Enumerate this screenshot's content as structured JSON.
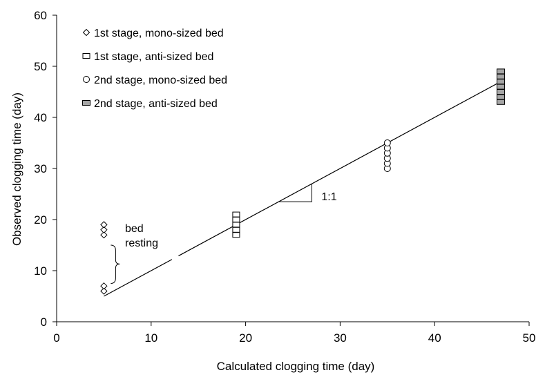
{
  "chart_data": {
    "type": "scatter",
    "title": "",
    "xlabel": "Calculated clogging time  (day)",
    "ylabel": "Observed clogging time  (day)",
    "xlim": [
      0,
      50
    ],
    "ylim": [
      0,
      60
    ],
    "xticks": [
      "0",
      "10",
      "20",
      "30",
      "40",
      "50"
    ],
    "yticks": [
      "0",
      "10",
      "20",
      "30",
      "40",
      "50",
      "60"
    ],
    "grid": false,
    "legend_position": "top-left",
    "series": [
      {
        "name": "1st stage, mono-sized bed",
        "marker": "diamond-open",
        "points": [
          [
            5,
            6
          ],
          [
            5,
            7
          ],
          [
            5,
            17
          ],
          [
            5,
            18
          ],
          [
            5,
            19
          ]
        ]
      },
      {
        "name": "1st stage, anti-sized bed",
        "marker": "square-open",
        "points": [
          [
            19,
            17
          ],
          [
            19,
            18
          ],
          [
            19,
            19
          ],
          [
            19,
            20
          ],
          [
            19,
            21
          ]
        ]
      },
      {
        "name": "2nd stage, mono-sized bed",
        "marker": "circle-open",
        "points": [
          [
            35,
            30
          ],
          [
            35,
            31
          ],
          [
            35,
            32
          ],
          [
            35,
            33
          ],
          [
            35,
            34
          ],
          [
            35,
            35
          ]
        ]
      },
      {
        "name": "2nd stage, anti-sized bed",
        "marker": "square-filled-gray",
        "points": [
          [
            47,
            43
          ],
          [
            47,
            44
          ],
          [
            47,
            45
          ],
          [
            47,
            46
          ],
          [
            47,
            47
          ],
          [
            47,
            48
          ],
          [
            47,
            49
          ]
        ]
      }
    ],
    "reference_line": {
      "label": "1:1",
      "from": [
        5,
        5
      ],
      "to": [
        47,
        47
      ]
    },
    "annotations": {
      "bed_label_line1": "bed",
      "bed_label_line2": "resting",
      "slope_label": "1:1"
    },
    "colors": {
      "axis": "#000000",
      "marker_stroke": "#000000",
      "marker_fill_gray": "#a6a6a6"
    }
  }
}
